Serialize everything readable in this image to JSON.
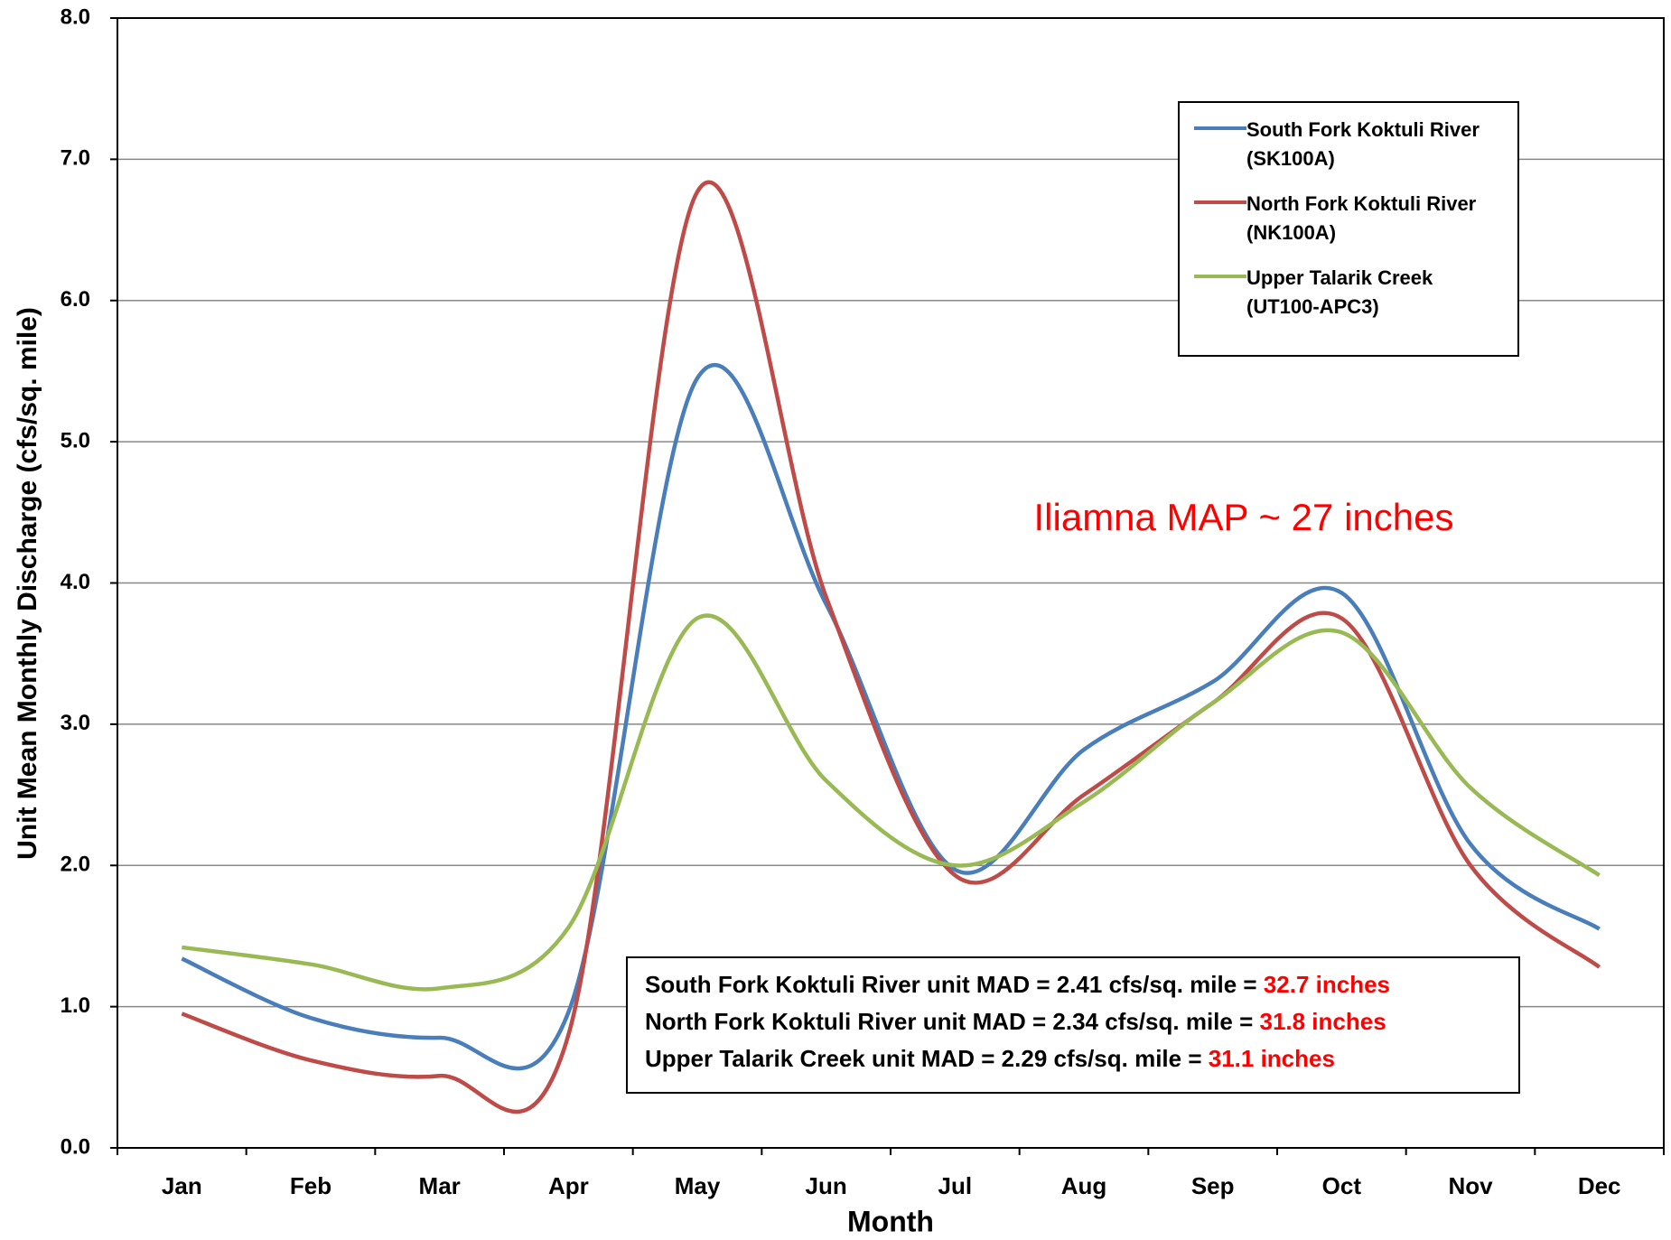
{
  "chart_data": {
    "type": "line",
    "categories": [
      "Jan",
      "Feb",
      "Mar",
      "Apr",
      "May",
      "Jun",
      "Jul",
      "Aug",
      "Sep",
      "Oct",
      "Nov",
      "Dec"
    ],
    "series": [
      {
        "name": "South Fork Koktuli River (SK100A)",
        "color": "#4a7ebb",
        "values": [
          1.34,
          0.92,
          0.78,
          0.96,
          5.45,
          3.85,
          1.97,
          2.82,
          3.3,
          3.93,
          2.15,
          1.55
        ]
      },
      {
        "name": "North Fork Koktuli River (NK100A)",
        "color": "#be4b48",
        "values": [
          0.95,
          0.62,
          0.51,
          0.8,
          6.77,
          3.9,
          1.93,
          2.5,
          3.15,
          3.75,
          2.0,
          1.28
        ]
      },
      {
        "name": "Upper Talarik Creek (UT100-APC3)",
        "color": "#98b954",
        "values": [
          1.42,
          1.3,
          1.13,
          1.56,
          3.75,
          2.6,
          2.0,
          2.45,
          3.15,
          3.65,
          2.55,
          1.93
        ]
      }
    ],
    "ylim": [
      0,
      8
    ],
    "yticks": [
      {
        "value": 0,
        "label": "0.0"
      },
      {
        "value": 1,
        "label": "1.0"
      },
      {
        "value": 2,
        "label": "2.0"
      },
      {
        "value": 3,
        "label": "3.0"
      },
      {
        "value": 4,
        "label": "4.0"
      },
      {
        "value": 5,
        "label": "5.0"
      },
      {
        "value": 6,
        "label": "6.0"
      },
      {
        "value": 7,
        "label": "7.0"
      },
      {
        "value": 8,
        "label": "8.0"
      }
    ],
    "grid": true,
    "x_label": "Month",
    "y_label": "Unit Mean Monthly Discharge (cfs/sq. mile)",
    "annotations": [
      "Iliamna MAP ~ 27 inches"
    ],
    "mad_lines": [
      {
        "text": "South Fork Koktuli River unit MAD = 2.41 cfs/sq. mile = ",
        "highlight": "32.7 inches"
      },
      {
        "text": "North Fork Koktuli River unit MAD = 2.34 cfs/sq. mile = ",
        "highlight": "31.8 inches"
      },
      {
        "text": "Upper Talarik Creek unit MAD = 2.29 cfs/sq. mile = ",
        "highlight": "31.1 inches"
      }
    ],
    "legend": "top-right"
  }
}
